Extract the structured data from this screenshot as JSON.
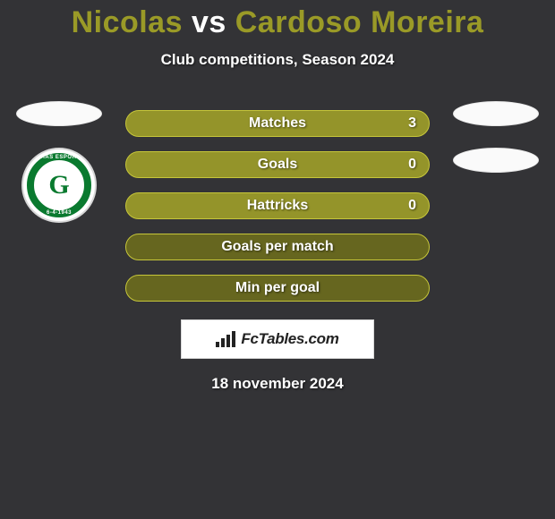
{
  "header": {
    "player_left": "Nicolas",
    "vs": "vs",
    "player_right": "Cardoso Moreira",
    "title_color_left": "#9a9a27",
    "title_color_vs": "#ffffff",
    "title_color_right": "#9a9a27",
    "subtitle": "Club competitions, Season 2024"
  },
  "stats": {
    "row_fill_color": "#94942a",
    "row_border_color": "#c6c63a",
    "row_empty_fill": "#66661f",
    "rows": [
      {
        "label": "Matches",
        "value_right": "3",
        "filled": true
      },
      {
        "label": "Goals",
        "value_right": "0",
        "filled": true
      },
      {
        "label": "Hattricks",
        "value_right": "0",
        "filled": true
      },
      {
        "label": "Goals per match",
        "value_right": "",
        "filled": false
      },
      {
        "label": "Min per goal",
        "value_right": "",
        "filled": false
      }
    ]
  },
  "left_player": {
    "club_badge": {
      "letter": "G",
      "ring_color": "#0a7a2f",
      "top_text": "GOIÁS ESPORTE",
      "bottom_text": "6-4-1943"
    }
  },
  "footer": {
    "brand": "FcTables.com",
    "date": "18 november 2024"
  },
  "colors": {
    "page_bg": "#333336",
    "text": "#ffffff"
  }
}
